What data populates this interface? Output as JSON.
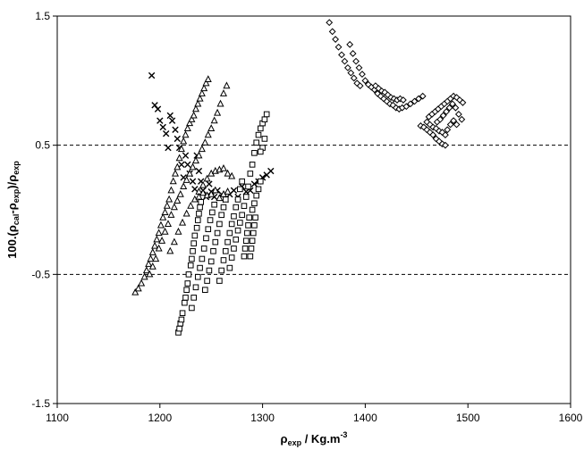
{
  "chart_data": {
    "type": "scatter",
    "title": "",
    "xlabel_main": "ρ",
    "xlabel_sub": "exp",
    "xlabel_rest": " / Kg.m",
    "xlabel_sup": "-3",
    "ylabel_prefix": "100.(ρ",
    "ylabel_cal": "cal",
    "ylabel_mid": "-ρ",
    "ylabel_exp1": "exp",
    "ylabel_close": ")/ρ",
    "ylabel_exp2": "exp",
    "xlim": [
      1100,
      1600
    ],
    "ylim": [
      -1.5,
      1.5
    ],
    "xticks": [
      1100,
      1200,
      1300,
      1400,
      1500,
      1600
    ],
    "xtick_labels": [
      "1100",
      "1200",
      "1300",
      "1400",
      "1500",
      "1600"
    ],
    "yticks": [
      -1.5,
      -0.5,
      0.5,
      1.5
    ],
    "ytick_labels": [
      "-1.5",
      "-0.5",
      "0.5",
      "1.5"
    ],
    "reference_lines": [
      0.5,
      -0.5
    ],
    "grid": false,
    "series": [
      {
        "marker": "cross",
        "points": [
          [
            1192,
            1.04
          ],
          [
            1195,
            0.81
          ],
          [
            1198,
            0.78
          ],
          [
            1200,
            0.69
          ],
          [
            1203,
            0.64
          ],
          [
            1206,
            0.59
          ],
          [
            1208,
            0.48
          ],
          [
            1210,
            0.73
          ],
          [
            1212,
            0.69
          ],
          [
            1215,
            0.62
          ],
          [
            1217,
            0.55
          ],
          [
            1219,
            0.48
          ],
          [
            1221,
            0.35
          ],
          [
            1223,
            0.25
          ],
          [
            1225,
            0.42
          ],
          [
            1227,
            0.35
          ],
          [
            1229,
            0.28
          ],
          [
            1232,
            0.22
          ],
          [
            1234,
            0.16
          ],
          [
            1236,
            0.42
          ],
          [
            1238,
            0.3
          ],
          [
            1240,
            0.22
          ],
          [
            1242,
            0.15
          ],
          [
            1245,
            0.1
          ],
          [
            1248,
            0.2
          ],
          [
            1250,
            0.14
          ],
          [
            1253,
            0.1
          ],
          [
            1256,
            0.15
          ],
          [
            1260,
            0.12
          ],
          [
            1264,
            0.08
          ],
          [
            1268,
            0.12
          ],
          [
            1272,
            0.15
          ],
          [
            1276,
            0.1
          ],
          [
            1280,
            0.18
          ],
          [
            1284,
            0.14
          ],
          [
            1288,
            0.15
          ],
          [
            1292,
            0.2
          ],
          [
            1296,
            0.22
          ],
          [
            1300,
            0.25
          ],
          [
            1304,
            0.27
          ],
          [
            1308,
            0.3
          ]
        ]
      },
      {
        "marker": "triangle",
        "points": [
          [
            1176,
            -0.64
          ],
          [
            1179,
            -0.61
          ],
          [
            1182,
            -0.57
          ],
          [
            1185,
            -0.52
          ],
          [
            1187,
            -0.47
          ],
          [
            1189,
            -0.42
          ],
          [
            1191,
            -0.38
          ],
          [
            1193,
            -0.33
          ],
          [
            1195,
            -0.28
          ],
          [
            1197,
            -0.23
          ],
          [
            1199,
            -0.18
          ],
          [
            1201,
            -0.12
          ],
          [
            1203,
            -0.06
          ],
          [
            1205,
            -0.02
          ],
          [
            1207,
            0.03
          ],
          [
            1209,
            0.08
          ],
          [
            1211,
            0.15
          ],
          [
            1213,
            0.22
          ],
          [
            1215,
            0.28
          ],
          [
            1217,
            0.33
          ],
          [
            1219,
            0.4
          ],
          [
            1221,
            0.47
          ],
          [
            1223,
            0.53
          ],
          [
            1225,
            0.58
          ],
          [
            1227,
            0.63
          ],
          [
            1229,
            0.67
          ],
          [
            1231,
            0.7
          ],
          [
            1233,
            0.73
          ],
          [
            1235,
            0.78
          ],
          [
            1237,
            0.82
          ],
          [
            1239,
            0.86
          ],
          [
            1241,
            0.9
          ],
          [
            1243,
            0.94
          ],
          [
            1245,
            0.98
          ],
          [
            1247,
            1.01
          ],
          [
            1190,
            -0.5
          ],
          [
            1193,
            -0.44
          ],
          [
            1196,
            -0.38
          ],
          [
            1199,
            -0.3
          ],
          [
            1202,
            -0.24
          ],
          [
            1205,
            -0.17
          ],
          [
            1208,
            -0.11
          ],
          [
            1211,
            -0.04
          ],
          [
            1214,
            0.02
          ],
          [
            1217,
            0.07
          ],
          [
            1220,
            0.12
          ],
          [
            1223,
            0.18
          ],
          [
            1226,
            0.23
          ],
          [
            1229,
            0.28
          ],
          [
            1232,
            0.33
          ],
          [
            1235,
            0.38
          ],
          [
            1238,
            0.42
          ],
          [
            1241,
            0.47
          ],
          [
            1244,
            0.52
          ],
          [
            1247,
            0.58
          ],
          [
            1250,
            0.63
          ],
          [
            1253,
            0.69
          ],
          [
            1256,
            0.75
          ],
          [
            1259,
            0.82
          ],
          [
            1262,
            0.9
          ],
          [
            1265,
            0.96
          ],
          [
            1210,
            -0.32
          ],
          [
            1214,
            -0.25
          ],
          [
            1218,
            -0.17
          ],
          [
            1222,
            -0.1
          ],
          [
            1226,
            -0.03
          ],
          [
            1230,
            0.03
          ],
          [
            1234,
            0.08
          ],
          [
            1238,
            0.14
          ],
          [
            1242,
            0.19
          ],
          [
            1246,
            0.24
          ],
          [
            1250,
            0.28
          ],
          [
            1254,
            0.3
          ],
          [
            1258,
            0.31
          ],
          [
            1262,
            0.32
          ],
          [
            1266,
            0.28
          ],
          [
            1270,
            0.26
          ],
          [
            1238,
            0.1
          ],
          [
            1242,
            0.13
          ],
          [
            1246,
            0.11
          ],
          [
            1250,
            0.12
          ],
          [
            1254,
            0.15
          ],
          [
            1258,
            0.09
          ],
          [
            1262,
            0.12
          ],
          [
            1266,
            0.14
          ]
        ]
      },
      {
        "marker": "square",
        "points": [
          [
            1218,
            -0.95
          ],
          [
            1219,
            -0.92
          ],
          [
            1220,
            -0.88
          ],
          [
            1221,
            -0.85
          ],
          [
            1222,
            -0.8
          ],
          [
            1224,
            -0.72
          ],
          [
            1225,
            -0.68
          ],
          [
            1226,
            -0.62
          ],
          [
            1227,
            -0.57
          ],
          [
            1228,
            -0.5
          ],
          [
            1230,
            -0.43
          ],
          [
            1231,
            -0.38
          ],
          [
            1232,
            -0.32
          ],
          [
            1233,
            -0.26
          ],
          [
            1234,
            -0.2
          ],
          [
            1236,
            -0.14
          ],
          [
            1237,
            -0.08
          ],
          [
            1238,
            -0.03
          ],
          [
            1239,
            0.02
          ],
          [
            1240,
            0.06
          ],
          [
            1231,
            -0.76
          ],
          [
            1233,
            -0.68
          ],
          [
            1235,
            -0.6
          ],
          [
            1237,
            -0.52
          ],
          [
            1239,
            -0.45
          ],
          [
            1241,
            -0.38
          ],
          [
            1243,
            -0.3
          ],
          [
            1245,
            -0.22
          ],
          [
            1247,
            -0.15
          ],
          [
            1249,
            -0.08
          ],
          [
            1251,
            -0.02
          ],
          [
            1253,
            0.04
          ],
          [
            1244,
            -0.62
          ],
          [
            1246,
            -0.55
          ],
          [
            1248,
            -0.47
          ],
          [
            1250,
            -0.4
          ],
          [
            1252,
            -0.32
          ],
          [
            1254,
            -0.25
          ],
          [
            1256,
            -0.18
          ],
          [
            1258,
            -0.11
          ],
          [
            1260,
            -0.04
          ],
          [
            1262,
            0.02
          ],
          [
            1264,
            0.08
          ],
          [
            1258,
            -0.55
          ],
          [
            1260,
            -0.47
          ],
          [
            1262,
            -0.39
          ],
          [
            1264,
            -0.32
          ],
          [
            1266,
            -0.25
          ],
          [
            1268,
            -0.18
          ],
          [
            1270,
            -0.11
          ],
          [
            1272,
            -0.05
          ],
          [
            1274,
            0.02
          ],
          [
            1276,
            0.08
          ],
          [
            1278,
            0.16
          ],
          [
            1280,
            0.22
          ],
          [
            1268,
            -0.45
          ],
          [
            1270,
            -0.37
          ],
          [
            1272,
            -0.3
          ],
          [
            1274,
            -0.23
          ],
          [
            1276,
            -0.16
          ],
          [
            1278,
            -0.1
          ],
          [
            1280,
            -0.04
          ],
          [
            1282,
            0.03
          ],
          [
            1284,
            0.1
          ],
          [
            1286,
            0.18
          ],
          [
            1288,
            0.28
          ],
          [
            1290,
            0.35
          ],
          [
            1292,
            0.44
          ],
          [
            1294,
            0.52
          ],
          [
            1296,
            0.58
          ],
          [
            1298,
            0.63
          ],
          [
            1300,
            0.67
          ],
          [
            1302,
            0.7
          ],
          [
            1304,
            0.74
          ],
          [
            1282,
            -0.36
          ],
          [
            1283,
            -0.3
          ],
          [
            1284,
            -0.24
          ],
          [
            1285,
            -0.18
          ],
          [
            1286,
            -0.12
          ],
          [
            1287,
            -0.06
          ],
          [
            1288,
            -0.36
          ],
          [
            1289,
            -0.3
          ],
          [
            1290,
            -0.24
          ],
          [
            1291,
            -0.18
          ],
          [
            1292,
            -0.12
          ],
          [
            1293,
            -0.06
          ],
          [
            1290,
            0.0
          ],
          [
            1292,
            0.05
          ],
          [
            1294,
            0.11
          ],
          [
            1296,
            0.16
          ],
          [
            1298,
            0.22
          ],
          [
            1300,
            0.48
          ],
          [
            1302,
            0.55
          ],
          [
            1298,
            0.45
          ]
        ]
      },
      {
        "marker": "diamond",
        "points": [
          [
            1365,
            1.45
          ],
          [
            1368,
            1.38
          ],
          [
            1371,
            1.32
          ],
          [
            1374,
            1.26
          ],
          [
            1377,
            1.2
          ],
          [
            1380,
            1.15
          ],
          [
            1383,
            1.1
          ],
          [
            1386,
            1.06
          ],
          [
            1389,
            1.02
          ],
          [
            1392,
            0.98
          ],
          [
            1395,
            0.96
          ],
          [
            1385,
            1.28
          ],
          [
            1388,
            1.21
          ],
          [
            1391,
            1.15
          ],
          [
            1394,
            1.1
          ],
          [
            1397,
            1.05
          ],
          [
            1400,
            1.0
          ],
          [
            1403,
            0.97
          ],
          [
            1406,
            0.95
          ],
          [
            1409,
            0.93
          ],
          [
            1412,
            0.9
          ],
          [
            1415,
            0.88
          ],
          [
            1418,
            0.86
          ],
          [
            1421,
            0.84
          ],
          [
            1424,
            0.82
          ],
          [
            1427,
            0.81
          ],
          [
            1430,
            0.79
          ],
          [
            1433,
            0.78
          ],
          [
            1436,
            0.79
          ],
          [
            1440,
            0.8
          ],
          [
            1444,
            0.82
          ],
          [
            1448,
            0.84
          ],
          [
            1452,
            0.86
          ],
          [
            1456,
            0.88
          ],
          [
            1410,
            0.96
          ],
          [
            1413,
            0.94
          ],
          [
            1416,
            0.92
          ],
          [
            1419,
            0.91
          ],
          [
            1422,
            0.89
          ],
          [
            1425,
            0.87
          ],
          [
            1428,
            0.86
          ],
          [
            1431,
            0.85
          ],
          [
            1434,
            0.86
          ],
          [
            1437,
            0.85
          ],
          [
            1454,
            0.65
          ],
          [
            1457,
            0.64
          ],
          [
            1460,
            0.62
          ],
          [
            1463,
            0.6
          ],
          [
            1466,
            0.58
          ],
          [
            1469,
            0.55
          ],
          [
            1472,
            0.53
          ],
          [
            1475,
            0.51
          ],
          [
            1478,
            0.5
          ],
          [
            1460,
            0.68
          ],
          [
            1463,
            0.66
          ],
          [
            1466,
            0.64
          ],
          [
            1469,
            0.63
          ],
          [
            1472,
            0.61
          ],
          [
            1475,
            0.6
          ],
          [
            1478,
            0.58
          ],
          [
            1462,
            0.72
          ],
          [
            1465,
            0.74
          ],
          [
            1468,
            0.76
          ],
          [
            1471,
            0.78
          ],
          [
            1474,
            0.8
          ],
          [
            1477,
            0.82
          ],
          [
            1480,
            0.84
          ],
          [
            1483,
            0.86
          ],
          [
            1486,
            0.88
          ],
          [
            1489,
            0.87
          ],
          [
            1492,
            0.85
          ],
          [
            1495,
            0.83
          ],
          [
            1470,
            0.68
          ],
          [
            1473,
            0.7
          ],
          [
            1476,
            0.73
          ],
          [
            1479,
            0.76
          ],
          [
            1482,
            0.79
          ],
          [
            1485,
            0.82
          ],
          [
            1488,
            0.79
          ],
          [
            1491,
            0.74
          ],
          [
            1494,
            0.7
          ],
          [
            1480,
            0.62
          ],
          [
            1483,
            0.66
          ],
          [
            1486,
            0.69
          ],
          [
            1489,
            0.66
          ]
        ]
      }
    ]
  }
}
